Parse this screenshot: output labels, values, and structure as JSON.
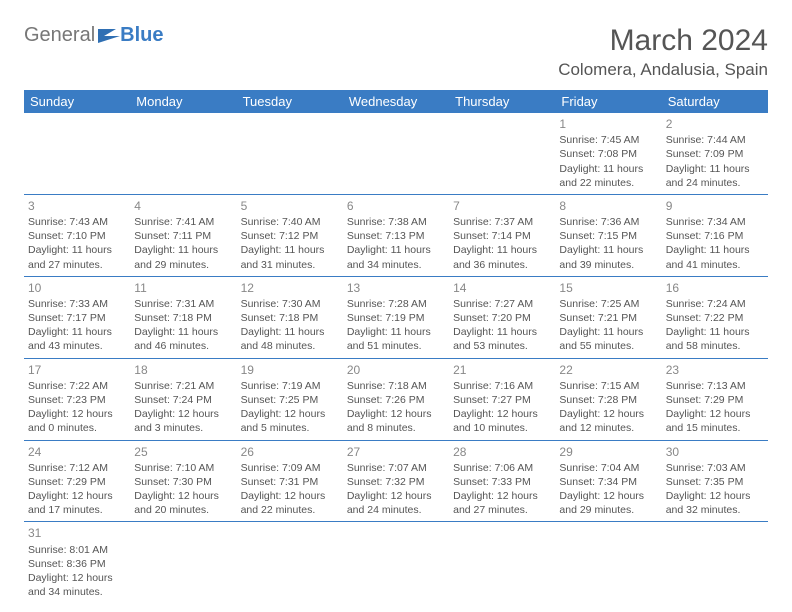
{
  "logo": {
    "text1": "General",
    "text2": "Blue"
  },
  "title": "March 2024",
  "location": "Colomera, Andalusia, Spain",
  "colors": {
    "accent": "#3a7cc4",
    "text": "#555555",
    "background": "#ffffff",
    "daynum": "#888888"
  },
  "day_headers": [
    "Sunday",
    "Monday",
    "Tuesday",
    "Wednesday",
    "Thursday",
    "Friday",
    "Saturday"
  ],
  "weeks": [
    [
      null,
      null,
      null,
      null,
      null,
      {
        "n": "1",
        "sr": "Sunrise: 7:45 AM",
        "ss": "Sunset: 7:08 PM",
        "d1": "Daylight: 11 hours",
        "d2": "and 22 minutes."
      },
      {
        "n": "2",
        "sr": "Sunrise: 7:44 AM",
        "ss": "Sunset: 7:09 PM",
        "d1": "Daylight: 11 hours",
        "d2": "and 24 minutes."
      }
    ],
    [
      {
        "n": "3",
        "sr": "Sunrise: 7:43 AM",
        "ss": "Sunset: 7:10 PM",
        "d1": "Daylight: 11 hours",
        "d2": "and 27 minutes."
      },
      {
        "n": "4",
        "sr": "Sunrise: 7:41 AM",
        "ss": "Sunset: 7:11 PM",
        "d1": "Daylight: 11 hours",
        "d2": "and 29 minutes."
      },
      {
        "n": "5",
        "sr": "Sunrise: 7:40 AM",
        "ss": "Sunset: 7:12 PM",
        "d1": "Daylight: 11 hours",
        "d2": "and 31 minutes."
      },
      {
        "n": "6",
        "sr": "Sunrise: 7:38 AM",
        "ss": "Sunset: 7:13 PM",
        "d1": "Daylight: 11 hours",
        "d2": "and 34 minutes."
      },
      {
        "n": "7",
        "sr": "Sunrise: 7:37 AM",
        "ss": "Sunset: 7:14 PM",
        "d1": "Daylight: 11 hours",
        "d2": "and 36 minutes."
      },
      {
        "n": "8",
        "sr": "Sunrise: 7:36 AM",
        "ss": "Sunset: 7:15 PM",
        "d1": "Daylight: 11 hours",
        "d2": "and 39 minutes."
      },
      {
        "n": "9",
        "sr": "Sunrise: 7:34 AM",
        "ss": "Sunset: 7:16 PM",
        "d1": "Daylight: 11 hours",
        "d2": "and 41 minutes."
      }
    ],
    [
      {
        "n": "10",
        "sr": "Sunrise: 7:33 AM",
        "ss": "Sunset: 7:17 PM",
        "d1": "Daylight: 11 hours",
        "d2": "and 43 minutes."
      },
      {
        "n": "11",
        "sr": "Sunrise: 7:31 AM",
        "ss": "Sunset: 7:18 PM",
        "d1": "Daylight: 11 hours",
        "d2": "and 46 minutes."
      },
      {
        "n": "12",
        "sr": "Sunrise: 7:30 AM",
        "ss": "Sunset: 7:18 PM",
        "d1": "Daylight: 11 hours",
        "d2": "and 48 minutes."
      },
      {
        "n": "13",
        "sr": "Sunrise: 7:28 AM",
        "ss": "Sunset: 7:19 PM",
        "d1": "Daylight: 11 hours",
        "d2": "and 51 minutes."
      },
      {
        "n": "14",
        "sr": "Sunrise: 7:27 AM",
        "ss": "Sunset: 7:20 PM",
        "d1": "Daylight: 11 hours",
        "d2": "and 53 minutes."
      },
      {
        "n": "15",
        "sr": "Sunrise: 7:25 AM",
        "ss": "Sunset: 7:21 PM",
        "d1": "Daylight: 11 hours",
        "d2": "and 55 minutes."
      },
      {
        "n": "16",
        "sr": "Sunrise: 7:24 AM",
        "ss": "Sunset: 7:22 PM",
        "d1": "Daylight: 11 hours",
        "d2": "and 58 minutes."
      }
    ],
    [
      {
        "n": "17",
        "sr": "Sunrise: 7:22 AM",
        "ss": "Sunset: 7:23 PM",
        "d1": "Daylight: 12 hours",
        "d2": "and 0 minutes."
      },
      {
        "n": "18",
        "sr": "Sunrise: 7:21 AM",
        "ss": "Sunset: 7:24 PM",
        "d1": "Daylight: 12 hours",
        "d2": "and 3 minutes."
      },
      {
        "n": "19",
        "sr": "Sunrise: 7:19 AM",
        "ss": "Sunset: 7:25 PM",
        "d1": "Daylight: 12 hours",
        "d2": "and 5 minutes."
      },
      {
        "n": "20",
        "sr": "Sunrise: 7:18 AM",
        "ss": "Sunset: 7:26 PM",
        "d1": "Daylight: 12 hours",
        "d2": "and 8 minutes."
      },
      {
        "n": "21",
        "sr": "Sunrise: 7:16 AM",
        "ss": "Sunset: 7:27 PM",
        "d1": "Daylight: 12 hours",
        "d2": "and 10 minutes."
      },
      {
        "n": "22",
        "sr": "Sunrise: 7:15 AM",
        "ss": "Sunset: 7:28 PM",
        "d1": "Daylight: 12 hours",
        "d2": "and 12 minutes."
      },
      {
        "n": "23",
        "sr": "Sunrise: 7:13 AM",
        "ss": "Sunset: 7:29 PM",
        "d1": "Daylight: 12 hours",
        "d2": "and 15 minutes."
      }
    ],
    [
      {
        "n": "24",
        "sr": "Sunrise: 7:12 AM",
        "ss": "Sunset: 7:29 PM",
        "d1": "Daylight: 12 hours",
        "d2": "and 17 minutes."
      },
      {
        "n": "25",
        "sr": "Sunrise: 7:10 AM",
        "ss": "Sunset: 7:30 PM",
        "d1": "Daylight: 12 hours",
        "d2": "and 20 minutes."
      },
      {
        "n": "26",
        "sr": "Sunrise: 7:09 AM",
        "ss": "Sunset: 7:31 PM",
        "d1": "Daylight: 12 hours",
        "d2": "and 22 minutes."
      },
      {
        "n": "27",
        "sr": "Sunrise: 7:07 AM",
        "ss": "Sunset: 7:32 PM",
        "d1": "Daylight: 12 hours",
        "d2": "and 24 minutes."
      },
      {
        "n": "28",
        "sr": "Sunrise: 7:06 AM",
        "ss": "Sunset: 7:33 PM",
        "d1": "Daylight: 12 hours",
        "d2": "and 27 minutes."
      },
      {
        "n": "29",
        "sr": "Sunrise: 7:04 AM",
        "ss": "Sunset: 7:34 PM",
        "d1": "Daylight: 12 hours",
        "d2": "and 29 minutes."
      },
      {
        "n": "30",
        "sr": "Sunrise: 7:03 AM",
        "ss": "Sunset: 7:35 PM",
        "d1": "Daylight: 12 hours",
        "d2": "and 32 minutes."
      }
    ],
    [
      {
        "n": "31",
        "sr": "Sunrise: 8:01 AM",
        "ss": "Sunset: 8:36 PM",
        "d1": "Daylight: 12 hours",
        "d2": "and 34 minutes."
      },
      null,
      null,
      null,
      null,
      null,
      null
    ]
  ]
}
